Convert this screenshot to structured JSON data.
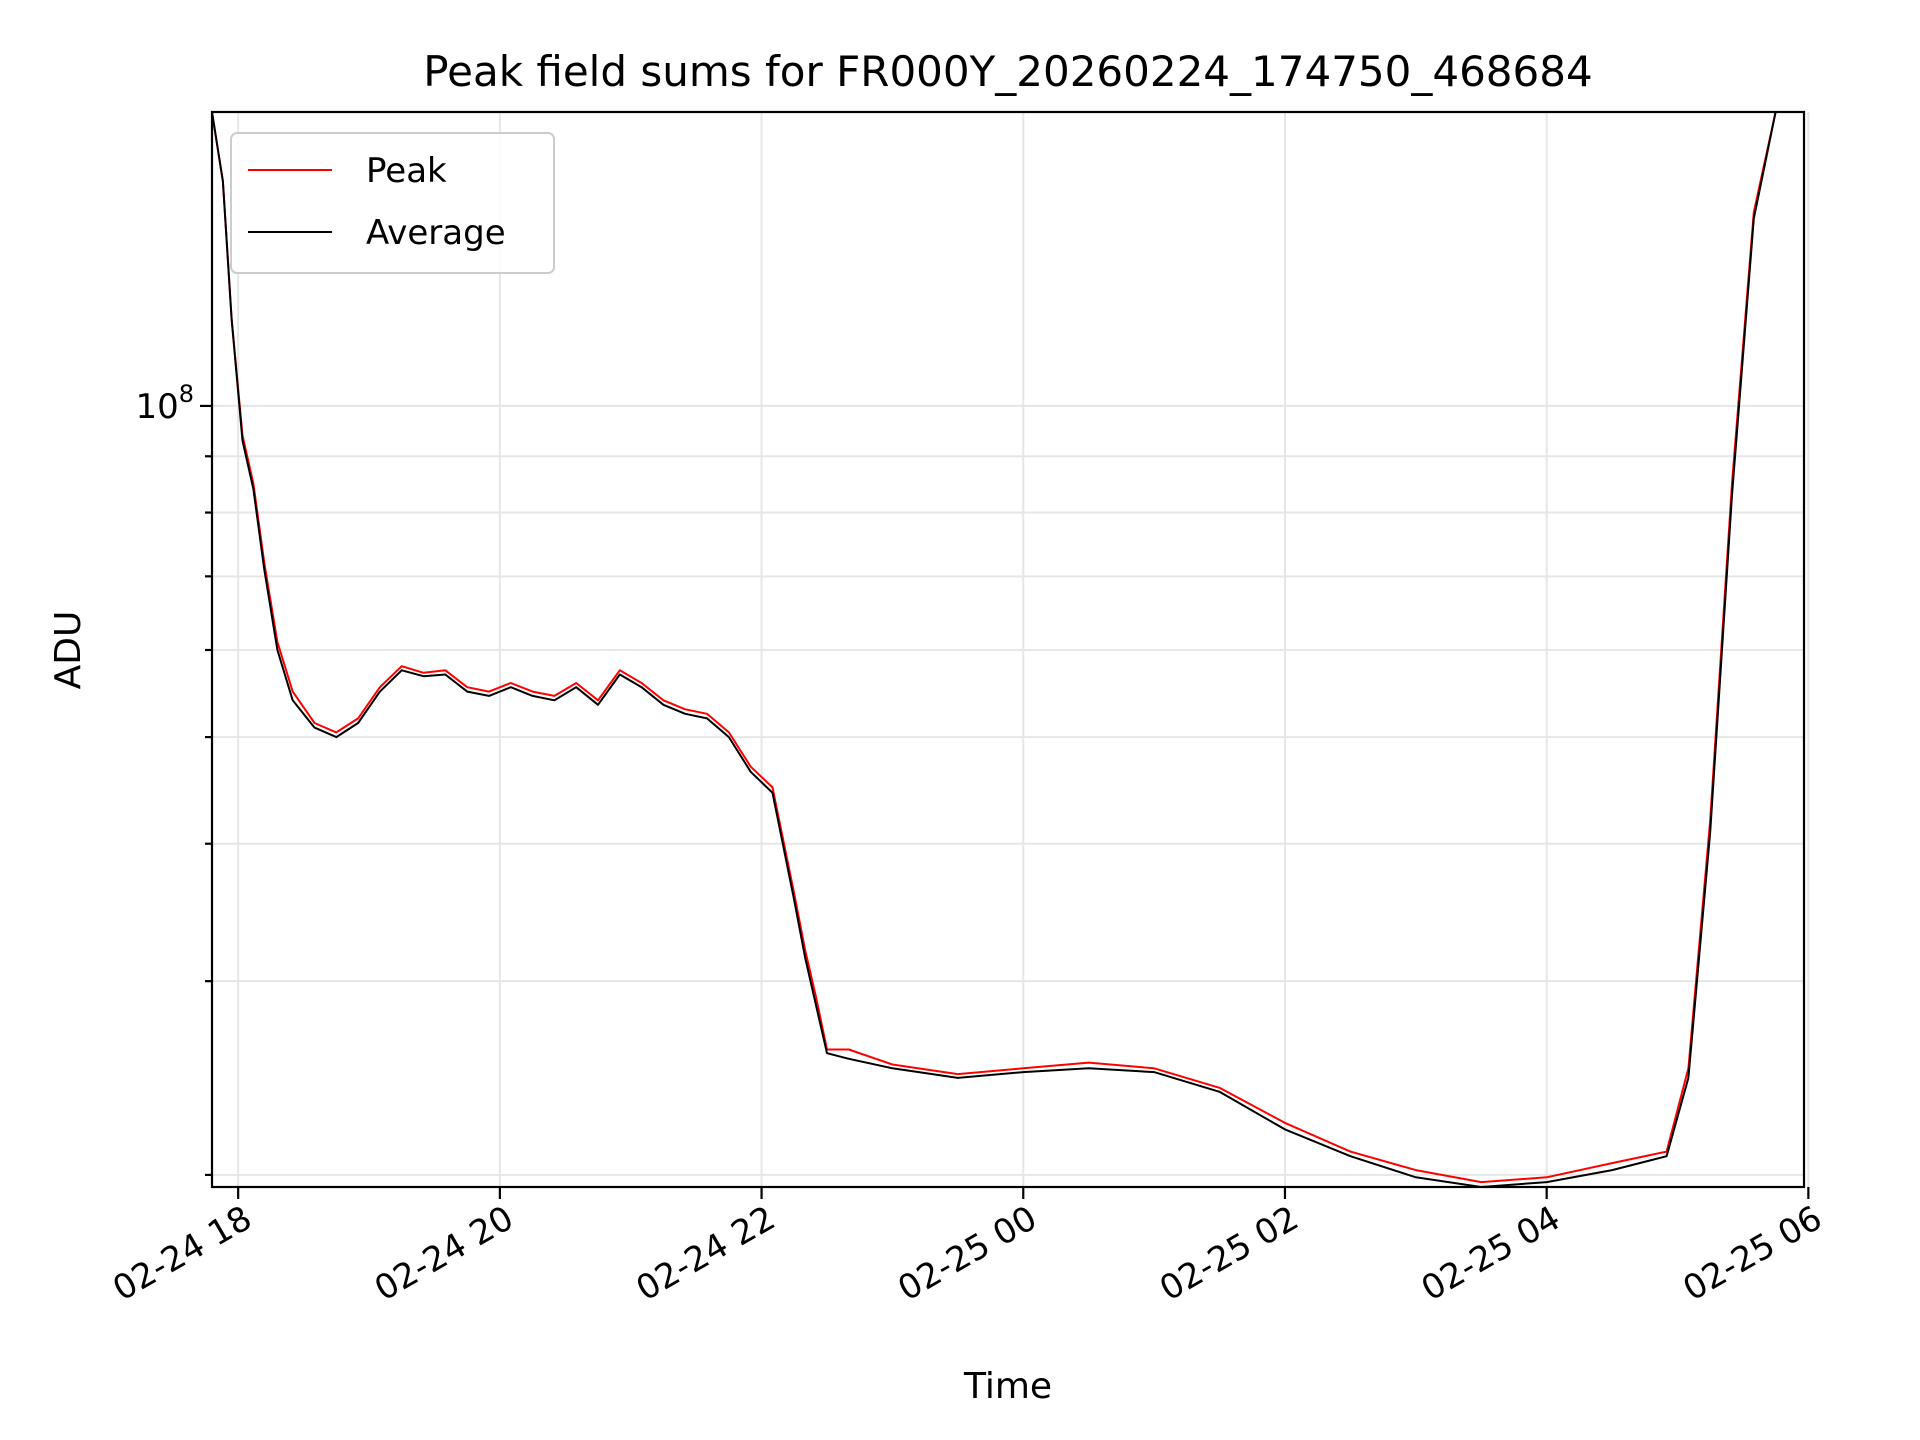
{
  "chart_data": {
    "type": "line",
    "title": "Peak field sums for FR000Y_20260224_174750_468684",
    "xlabel": "Time",
    "ylabel": "ADU",
    "yscale": "log",
    "ylim": [
      19500000.0,
      185000000.0
    ],
    "xlim": [
      "2026-02-24 17:48",
      "2026-02-25 05:58"
    ],
    "x_ticks": [
      "02-24 18",
      "02-24 20",
      "02-24 22",
      "02-25 00",
      "02-25 02",
      "02-25 04",
      "02-25 06"
    ],
    "y_ticks": [
      {
        "label_base": "10",
        "label_exp": "8",
        "value": 100000000.0
      }
    ],
    "grid": true,
    "legend": "upper-left",
    "series": [
      {
        "name": "Peak",
        "color": "#ff0000",
        "x": [
          "2026-02-24 17:48",
          "2026-02-24 17:53",
          "2026-02-24 17:57",
          "2026-02-24 18:02",
          "2026-02-24 18:07",
          "2026-02-24 18:12",
          "2026-02-24 18:18",
          "2026-02-24 18:25",
          "2026-02-24 18:35",
          "2026-02-24 18:45",
          "2026-02-24 18:55",
          "2026-02-24 19:05",
          "2026-02-24 19:15",
          "2026-02-24 19:25",
          "2026-02-24 19:35",
          "2026-02-24 19:45",
          "2026-02-24 19:55",
          "2026-02-24 20:05",
          "2026-02-24 20:15",
          "2026-02-24 20:25",
          "2026-02-24 20:35",
          "2026-02-24 20:45",
          "2026-02-24 20:55",
          "2026-02-24 21:05",
          "2026-02-24 21:15",
          "2026-02-24 21:25",
          "2026-02-24 21:35",
          "2026-02-24 21:45",
          "2026-02-24 21:55",
          "2026-02-24 22:05",
          "2026-02-24 22:15",
          "2026-02-24 22:20",
          "2026-02-24 22:25",
          "2026-02-24 22:30",
          "2026-02-24 22:40",
          "2026-02-24 23:00",
          "2026-02-24 23:30",
          "2026-02-25 00:00",
          "2026-02-25 00:30",
          "2026-02-25 01:00",
          "2026-02-25 01:30",
          "2026-02-25 02:00",
          "2026-02-25 02:30",
          "2026-02-25 03:00",
          "2026-02-25 03:30",
          "2026-02-25 04:00",
          "2026-02-25 04:30",
          "2026-02-25 04:55",
          "2026-02-25 05:05",
          "2026-02-25 05:15",
          "2026-02-25 05:25",
          "2026-02-25 05:35",
          "2026-02-25 05:45"
        ],
        "y": [
          185000000.0,
          160000000.0,
          120000000.0,
          94000000.0,
          85000000.0,
          72000000.0,
          61000000.0,
          55000000.0,
          51500000.0,
          50500000.0,
          52000000.0,
          55500000.0,
          58000000.0,
          57200000.0,
          57500000.0,
          55500000.0,
          55000000.0,
          56000000.0,
          55000000.0,
          54500000.0,
          56000000.0,
          54000000.0,
          57500000.0,
          56000000.0,
          54000000.0,
          53000000.0,
          52500000.0,
          50500000.0,
          47000000.0,
          45000000.0,
          36000000.0,
          32000000.0,
          29000000.0,
          26000000.0,
          26000000.0,
          25200000.0,
          24700000.0,
          25000000.0,
          25300000.0,
          25000000.0,
          24000000.0,
          22300000.0,
          21000000.0,
          20200000.0,
          19700000.0,
          19900000.0,
          20500000.0,
          21000000.0,
          25000000.0,
          42000000.0,
          85000000.0,
          150000000.0,
          185000000.0
        ]
      },
      {
        "name": "Average",
        "color": "#000000",
        "x": [
          "2026-02-24 17:48",
          "2026-02-24 17:53",
          "2026-02-24 17:57",
          "2026-02-24 18:02",
          "2026-02-24 18:07",
          "2026-02-24 18:12",
          "2026-02-24 18:18",
          "2026-02-24 18:25",
          "2026-02-24 18:35",
          "2026-02-24 18:45",
          "2026-02-24 18:55",
          "2026-02-24 19:05",
          "2026-02-24 19:15",
          "2026-02-24 19:25",
          "2026-02-24 19:35",
          "2026-02-24 19:45",
          "2026-02-24 19:55",
          "2026-02-24 20:05",
          "2026-02-24 20:15",
          "2026-02-24 20:25",
          "2026-02-24 20:35",
          "2026-02-24 20:45",
          "2026-02-24 20:55",
          "2026-02-24 21:05",
          "2026-02-24 21:15",
          "2026-02-24 21:25",
          "2026-02-24 21:35",
          "2026-02-24 21:45",
          "2026-02-24 21:55",
          "2026-02-24 22:05",
          "2026-02-24 22:15",
          "2026-02-24 22:20",
          "2026-02-24 22:25",
          "2026-02-24 22:30",
          "2026-02-24 22:40",
          "2026-02-24 23:00",
          "2026-02-24 23:30",
          "2026-02-25 00:00",
          "2026-02-25 00:30",
          "2026-02-25 01:00",
          "2026-02-25 01:30",
          "2026-02-25 02:00",
          "2026-02-25 02:30",
          "2026-02-25 03:00",
          "2026-02-25 03:30",
          "2026-02-25 04:00",
          "2026-02-25 04:30",
          "2026-02-25 04:55",
          "2026-02-25 05:05",
          "2026-02-25 05:15",
          "2026-02-25 05:25",
          "2026-02-25 05:35",
          "2026-02-25 05:45"
        ],
        "y": [
          185000000.0,
          160000000.0,
          120000000.0,
          93000000.0,
          84000000.0,
          71000000.0,
          60000000.0,
          54000000.0,
          51000000.0,
          50000000.0,
          51500000.0,
          55000000.0,
          57500000.0,
          56800000.0,
          57000000.0,
          55000000.0,
          54500000.0,
          55500000.0,
          54500000.0,
          54000000.0,
          55500000.0,
          53500000.0,
          57000000.0,
          55500000.0,
          53500000.0,
          52500000.0,
          52000000.0,
          50000000.0,
          46500000.0,
          44500000.0,
          35500000.0,
          31500000.0,
          28500000.0,
          25800000.0,
          25500000.0,
          25000000.0,
          24500000.0,
          24800000.0,
          25000000.0,
          24800000.0,
          23800000.0,
          22000000.0,
          20800000.0,
          19900000.0,
          19500000.0,
          19700000.0,
          20200000.0,
          20800000.0,
          24500000.0,
          41000000.0,
          83000000.0,
          148000000.0,
          185000000.0
        ]
      }
    ]
  }
}
